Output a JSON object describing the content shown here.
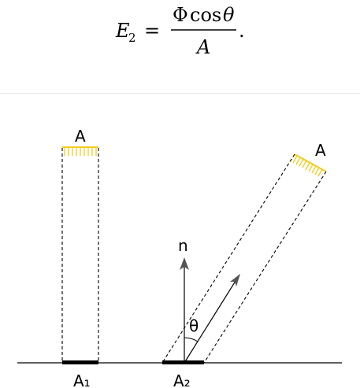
{
  "formula": {
    "lhs_symbol": "E",
    "lhs_subscript": "2",
    "equals": "=",
    "numerator_flux": "Φ",
    "numerator_cos": "cos",
    "numerator_theta": "θ",
    "denominator": "A",
    "trailing": "."
  },
  "diagram": {
    "label_A_left": "A",
    "label_A_right": "A",
    "label_normal": "n",
    "label_theta": "θ",
    "label_A1": "A₁",
    "label_A2": "A₂",
    "colors": {
      "source_hatch": "#f2cc1f",
      "line": "#000000",
      "arrow": "#555555",
      "patch": "#000000"
    }
  }
}
